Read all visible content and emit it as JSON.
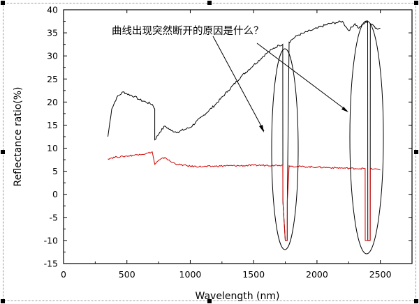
{
  "chart_data": {
    "type": "line",
    "title": "",
    "annotation": "曲线出现突然断开的原因是什么？",
    "xlabel": "Wavelength (nm)",
    "ylabel": "Reflectance ratio(%)",
    "xlim": [
      0,
      2750
    ],
    "ylim": [
      -15,
      40
    ],
    "xticks": [
      0,
      500,
      1000,
      1500,
      2000,
      2500
    ],
    "yticks": [
      -15,
      -10,
      -5,
      0,
      5,
      10,
      15,
      20,
      25,
      30,
      35,
      40
    ],
    "grid": false,
    "series": [
      {
        "color": "#000000",
        "x": [
          350,
          380,
          420,
          470,
          500,
          560,
          600,
          650,
          700,
          720,
          720,
          760,
          800,
          850,
          900,
          1000,
          1100,
          1200,
          1300,
          1400,
          1500,
          1600,
          1650,
          1700,
          1730,
          1731,
          1750,
          1765,
          1766,
          1780,
          1800,
          1850,
          1900,
          1950,
          2000,
          2100,
          2150,
          2200,
          2250,
          2300,
          2330,
          2380,
          2400,
          2401,
          2420,
          2421,
          2440,
          2460,
          2500
        ],
        "y": [
          12.5,
          18.5,
          21,
          22.2,
          21.8,
          21.2,
          20.5,
          20,
          19.5,
          18.5,
          11.8,
          13.5,
          14.8,
          13.8,
          13.5,
          14.5,
          17,
          19.5,
          22.5,
          25.5,
          28,
          30.5,
          31.5,
          32.3,
          32.5,
          -1.5,
          -10,
          -10,
          -1.5,
          33,
          33.5,
          34.5,
          35,
          35.5,
          36,
          37,
          37.2,
          37.5,
          35.5,
          37,
          36,
          37.2,
          37.5,
          -10,
          -10,
          37,
          36.8,
          36,
          36
        ]
      },
      {
        "color": "#d00000",
        "x": [
          350,
          380,
          420,
          470,
          500,
          560,
          600,
          650,
          700,
          720,
          730,
          760,
          800,
          850,
          900,
          1000,
          1100,
          1200,
          1300,
          1400,
          1500,
          1600,
          1650,
          1700,
          1730,
          1731,
          1750,
          1765,
          1766,
          1780,
          1800,
          1900,
          2000,
          2100,
          2200,
          2300,
          2380,
          2381,
          2420,
          2421,
          2450,
          2500
        ],
        "y": [
          7.7,
          7.9,
          8.1,
          8.2,
          8.3,
          8.5,
          8.7,
          8.8,
          9.2,
          6.5,
          6.8,
          7.5,
          8,
          7,
          6.5,
          6.1,
          6,
          6.1,
          6.2,
          6.2,
          6.3,
          6.3,
          6.3,
          6.3,
          6.3,
          -1.5,
          -10,
          -10,
          -1.5,
          6.2,
          6.1,
          6,
          5.9,
          5.8,
          5.7,
          5.6,
          5.6,
          -10,
          -10,
          5.5,
          5.5,
          5.3
        ]
      }
    ]
  }
}
